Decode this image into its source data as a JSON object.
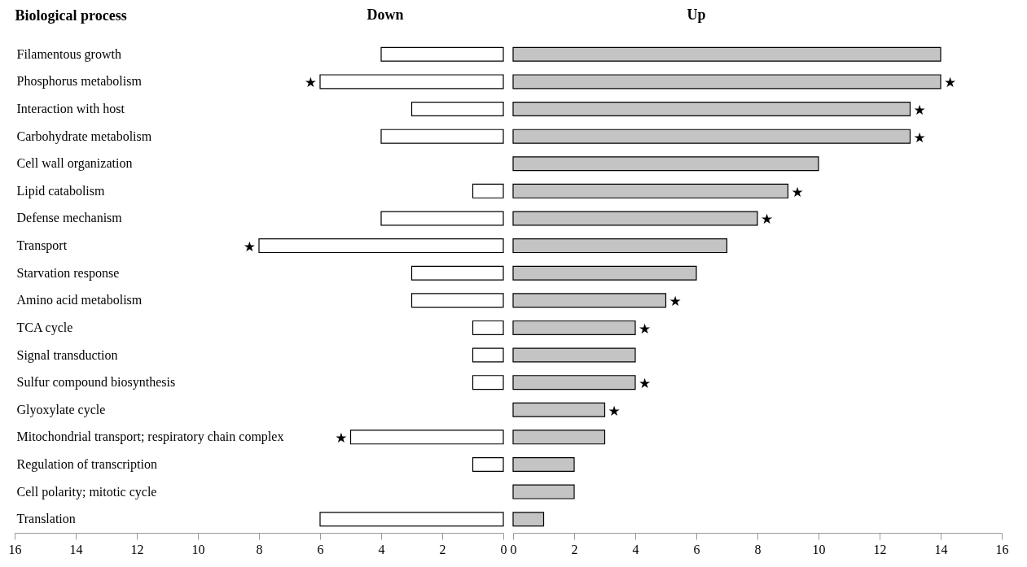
{
  "chart_data": [
    {
      "type": "bar",
      "orientation": "horizontal",
      "title": "Down",
      "ylabel": "Biological process",
      "categories": [
        "Filamentous growth",
        "Phosphorus metabolism",
        "Interaction with host",
        "Carbohydrate metabolism",
        "Cell wall organization",
        "Lipid catabolism",
        "Defense mechanism",
        "Transport",
        "Starvation response",
        "Amino acid metabolism",
        "TCA cycle",
        "Signal transduction",
        "Sulfur compound biosynthesis",
        "Glyoxylate cycle",
        "Mitochondrial transport; respiratory chain complex",
        "Regulation of transcription",
        "Cell polarity; mitotic cycle",
        "Translation"
      ],
      "values": [
        4,
        6,
        3,
        4,
        null,
        1,
        4,
        8,
        3,
        3,
        1,
        1,
        1,
        null,
        5,
        1,
        null,
        6
      ],
      "color": "#ffffff",
      "xlim": [
        16,
        0
      ],
      "xticks": [
        16,
        14,
        12,
        10,
        8,
        6,
        4,
        2,
        0
      ],
      "grid": false,
      "annotations": [
        {
          "text": "★",
          "x": 6,
          "y": "Phosphorus metabolism"
        },
        {
          "text": "★",
          "x": 8,
          "y": "Transport"
        },
        {
          "text": "★",
          "x": 5,
          "y": "Mitochondrial transport; respiratory chain complex"
        }
      ]
    },
    {
      "type": "bar",
      "orientation": "horizontal",
      "title": "Up",
      "categories": [
        "Filamentous growth",
        "Phosphorus metabolism",
        "Interaction with host",
        "Carbohydrate metabolism",
        "Cell wall organization",
        "Lipid catabolism",
        "Defense mechanism",
        "Transport",
        "Starvation response",
        "Amino acid metabolism",
        "TCA cycle",
        "Signal transduction",
        "Sulfur compound biosynthesis",
        "Glyoxylate cycle",
        "Mitochondrial transport; respiratory chain complex",
        "Regulation of transcription",
        "Cell polarity; mitotic cycle",
        "Translation"
      ],
      "values": [
        14,
        14,
        13,
        13,
        10,
        9,
        8,
        7,
        6,
        5,
        4,
        4,
        4,
        3,
        3,
        2,
        2,
        1
      ],
      "color": "#c4c4c4",
      "xlim": [
        0,
        16
      ],
      "xticks": [
        0,
        2,
        4,
        6,
        8,
        10,
        12,
        14,
        16
      ],
      "grid": false,
      "tick_labels": "x",
      "annotations": [
        {
          "text": "★",
          "x": 14,
          "y": "Phosphorus metabolism"
        },
        {
          "text": "★",
          "x": 13,
          "y": "Interaction with host"
        },
        {
          "text": "★",
          "x": 13,
          "y": "Carbohydrate metabolism"
        },
        {
          "text": "★",
          "x": 9,
          "y": "Lipid catabolism"
        },
        {
          "text": "★",
          "x": 8,
          "y": "Defense mechanism"
        },
        {
          "text": "★",
          "x": 5,
          "y": "Amino acid metabolism"
        },
        {
          "text": "★",
          "x": 4,
          "y": "TCA cycle"
        },
        {
          "text": "★",
          "x": 4,
          "y": "Sulfur compound biosynthesis"
        },
        {
          "text": "★",
          "x": 3,
          "y": "Glyoxylate cycle"
        }
      ]
    }
  ]
}
